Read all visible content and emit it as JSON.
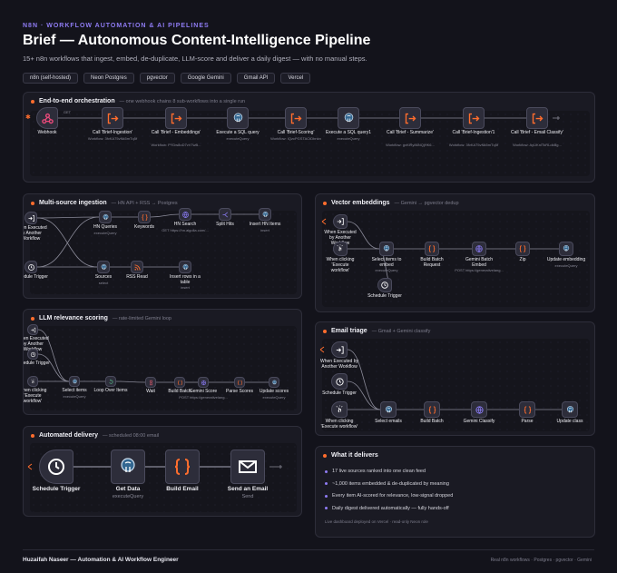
{
  "header": {
    "kicker": "N8N · WORKFLOW AUTOMATION & AI PIPELINES",
    "title": "Brief — Autonomous Content-Intelligence Pipeline",
    "subtitle": "15+ n8n workflows that ingest, embed, de-duplicate, LLM-score and deliver a daily digest — with no manual steps."
  },
  "chips": [
    "n8n (self-hosted)",
    "Neon Postgres",
    "pgvector",
    "Google Gemini",
    "Gmail API",
    "Vercel"
  ],
  "orchestration": {
    "title": "End-to-end orchestration",
    "note": "— one webhook chains 8 sub-workflows into a single run",
    "get_label": "GET",
    "nodes": [
      {
        "label": "Webhook",
        "sub": ""
      },
      {
        "label": "Call 'Brief-Ingestion'",
        "sub": "Workflow: 3fvKA75vNk5mTq5f"
      },
      {
        "label": "Call 'Brief - Embeddings'",
        "sub": "Workflow: PYDw8oD7vV7wB..."
      },
      {
        "label": "Execute a SQL query",
        "sub": "executeQuery"
      },
      {
        "label": "Call 'Brief-Scoring'",
        "sub": "Workflow: IQzcPGSTACtDbnkn"
      },
      {
        "label": "Execute a SQL query1",
        "sub": "executeQuery"
      },
      {
        "label": "Call 'Brief - Summarize'",
        "sub": "Workflow: gxKlRy86NQjHK6..."
      },
      {
        "label": "Call 'Brief-Ingestion'1",
        "sub": "Workflow: 3fvKA75vNk5mTq5f"
      },
      {
        "label": "Call 'Brief - Email Classify'",
        "sub": "Workflow: AyUKnlTkRLdkBg..."
      }
    ]
  },
  "ingestion": {
    "title": "Multi-source ingestion",
    "note": "— HN API + RSS → Postgres",
    "nodes": [
      {
        "label": "When Executed by Another Workflow",
        "sub": ""
      },
      {
        "label": "Schedule Trigger",
        "sub": ""
      },
      {
        "label": "HN Queries",
        "sub": "executeQuery"
      },
      {
        "label": "Keywords",
        "sub": ""
      },
      {
        "label": "HN Search",
        "sub": "GET https://hn.algolia.com/..."
      },
      {
        "label": "Split Hits",
        "sub": ""
      },
      {
        "label": "Insert HN Items",
        "sub": "insert"
      },
      {
        "label": "Sources",
        "sub": "select"
      },
      {
        "label": "RSS Read",
        "sub": ""
      },
      {
        "label": "Insert rows in a table",
        "sub": "insert"
      }
    ]
  },
  "scoring": {
    "title": "LLM relevance scoring",
    "note": "— rate-limited Gemini loop",
    "nodes": [
      {
        "label": "When Executed by Another Workflow",
        "sub": ""
      },
      {
        "label": "Schedule Trigger",
        "sub": ""
      },
      {
        "label": "When clicking 'Execute workflow'",
        "sub": ""
      },
      {
        "label": "Select items",
        "sub": "executeQuery"
      },
      {
        "label": "Loop Over Items",
        "sub": ""
      },
      {
        "label": "Wait",
        "sub": ""
      },
      {
        "label": "Build Batch",
        "sub": ""
      },
      {
        "label": "Gemini Score",
        "sub": "POST https://generativelang..."
      },
      {
        "label": "Parse Scores",
        "sub": ""
      },
      {
        "label": "Update scores",
        "sub": "executeQuery"
      }
    ]
  },
  "delivery": {
    "title": "Automated delivery",
    "note": "— scheduled 08:00 email",
    "nodes": [
      {
        "label": "Schedule Trigger",
        "sub": ""
      },
      {
        "label": "Get Data",
        "sub": "executeQuery"
      },
      {
        "label": "Build Email",
        "sub": ""
      },
      {
        "label": "Send an Email",
        "sub": "Send"
      }
    ]
  },
  "vector": {
    "title": "Vector embeddings",
    "note": "— Gemini → pgvector dedup",
    "nodes": [
      {
        "label": "When Executed by Another Workflow",
        "sub": ""
      },
      {
        "label": "When clicking 'Execute workflow'",
        "sub": ""
      },
      {
        "label": "Schedule Trigger",
        "sub": ""
      },
      {
        "label": "Select items to embed",
        "sub": "executeQuery"
      },
      {
        "label": "Build Batch Request",
        "sub": ""
      },
      {
        "label": "Gemini Batch Embed",
        "sub": "POST https://generativelang..."
      },
      {
        "label": "Zip",
        "sub": ""
      },
      {
        "label": "Update embedding",
        "sub": "executeQuery"
      }
    ]
  },
  "triage": {
    "title": "Email triage",
    "note": "— Gmail + Gemini classify",
    "nodes": [
      {
        "label": "When Executed by Another Workflow",
        "sub": ""
      },
      {
        "label": "Schedule Trigger",
        "sub": ""
      },
      {
        "label": "When clicking 'Execute workflow'",
        "sub": ""
      },
      {
        "label": "Select emails",
        "sub": ""
      },
      {
        "label": "Build Batch",
        "sub": ""
      },
      {
        "label": "Gemini Classify",
        "sub": ""
      },
      {
        "label": "Parse",
        "sub": ""
      },
      {
        "label": "Update class",
        "sub": ""
      }
    ]
  },
  "delivers": {
    "title": "What it delivers",
    "items": [
      "17 live sources ranked into one clean feed",
      "~1,000 items embedded & de-duplicated by meaning",
      "Every item AI-scored for relevance, low-signal dropped",
      "Daily digest delivered automatically — fully hands-off"
    ],
    "note": "Live dashboard deployed on Vercel · read-only Neon role"
  },
  "footer": {
    "left": "Huzaifah Naseer — Automation & AI Workflow Engineer",
    "right": "Real n8n workflows · Postgres · pgvector · Gemini"
  },
  "colors": {
    "background": "#13131b",
    "accent": "#8f7cf4",
    "n8n_orange": "#ff6d2d",
    "webhook_pink": "#e9497a",
    "postgres_blue": "#336791",
    "gemini_violet": "#8b7cf6"
  }
}
